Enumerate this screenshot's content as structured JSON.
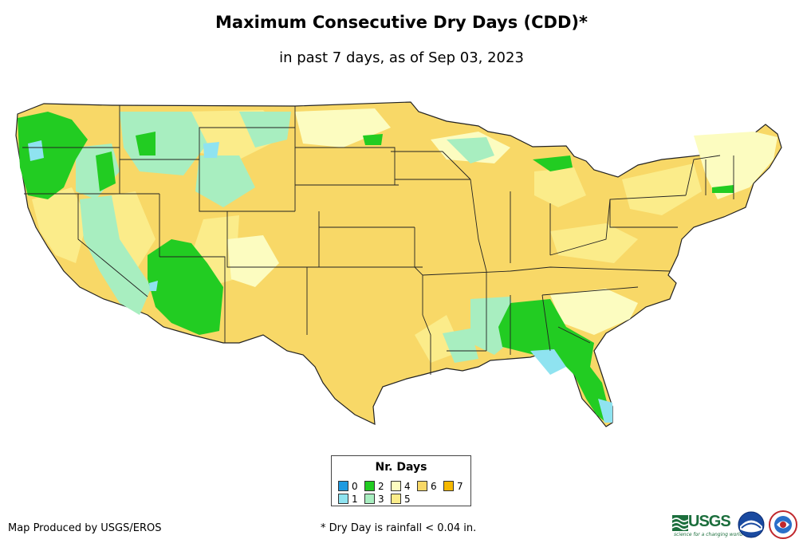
{
  "header": {
    "title": "Maximum Consecutive Dry Days (CDD)*",
    "subtitle": "in past 7 days, as of Sep 03, 2023"
  },
  "legend": {
    "title": "Nr. Days",
    "items": [
      {
        "label": "0",
        "color": "#1f9ae0"
      },
      {
        "label": "1",
        "color": "#8fe3f0"
      },
      {
        "label": "2",
        "color": "#22cc22"
      },
      {
        "label": "3",
        "color": "#a8eec0"
      },
      {
        "label": "4",
        "color": "#fcfcc0"
      },
      {
        "label": "5",
        "color": "#fbec8a"
      },
      {
        "label": "6",
        "color": "#f8d867"
      },
      {
        "label": "7",
        "color": "#f5b800"
      }
    ]
  },
  "footer": {
    "credit": "Map Produced by USGS/EROS",
    "footnote": "* Dry Day is rainfall < 0.04 in.",
    "usgs_wordmark": "USGS",
    "usgs_tagline": "science for a changing world"
  },
  "map": {
    "base_color": "#f8d867",
    "boundary_color": "#222222"
  }
}
